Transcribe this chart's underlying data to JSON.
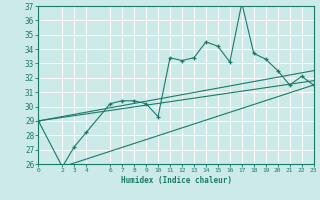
{
  "bg_color": "#cceae7",
  "grid_color": "#ffffff",
  "line_color": "#1a7a6a",
  "xlabel": "Humidex (Indice chaleur)",
  "xlim": [
    0,
    23
  ],
  "ylim": [
    26,
    37
  ],
  "yticks": [
    26,
    27,
    28,
    29,
    30,
    31,
    32,
    33,
    34,
    35,
    36,
    37
  ],
  "xticks": [
    0,
    2,
    3,
    4,
    6,
    7,
    8,
    9,
    10,
    11,
    12,
    13,
    14,
    15,
    16,
    17,
    18,
    19,
    20,
    21,
    22,
    23
  ],
  "series1_x": [
    0,
    2,
    3,
    4,
    6,
    7,
    8,
    9,
    10,
    11,
    12,
    13,
    14,
    15,
    16,
    17,
    18,
    19,
    20,
    21,
    22,
    23
  ],
  "series1_y": [
    29.0,
    25.8,
    27.2,
    28.2,
    30.2,
    30.4,
    30.4,
    30.2,
    29.3,
    33.4,
    33.2,
    33.4,
    34.5,
    34.2,
    33.1,
    37.2,
    33.7,
    33.3,
    32.5,
    31.5,
    32.1,
    31.5
  ],
  "series2_x": [
    0,
    23
  ],
  "series2_y": [
    29.0,
    31.8
  ],
  "series3_x": [
    0,
    23
  ],
  "series3_y": [
    29.0,
    32.5
  ],
  "series4_x": [
    2,
    23
  ],
  "series4_y": [
    25.8,
    31.5
  ]
}
